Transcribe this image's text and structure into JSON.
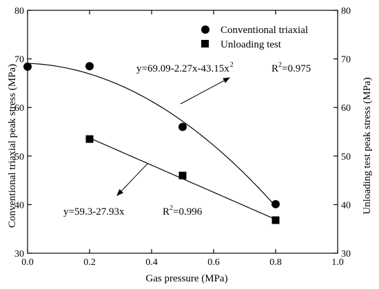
{
  "chart_data": {
    "type": "scatter",
    "title": "",
    "xlabel": "Gas pressure (MPa)",
    "ylabel": "Conventional triaxial peak stress (MPa)",
    "ylabel_right": "Unloading test peak stress (MPa)",
    "xlim": [
      0.0,
      1.0
    ],
    "ylim": [
      30,
      80
    ],
    "x_ticks": [
      "0.0",
      "0.2",
      "0.4",
      "0.6",
      "0.8",
      "1.0"
    ],
    "y_ticks": [
      "30",
      "40",
      "50",
      "60",
      "70",
      "80"
    ],
    "grid": false,
    "legend": "top-right",
    "series": [
      {
        "name": "Conventional triaxial",
        "marker": "circle",
        "x": [
          0.0,
          0.2,
          0.5,
          0.8
        ],
        "y": [
          68.4,
          68.5,
          56.0,
          40.1
        ],
        "fit": {
          "type": "quadratic",
          "a": 69.09,
          "b": -2.27,
          "c": -43.15,
          "x_range": [
            0.0,
            0.8
          ]
        }
      },
      {
        "name": "Unloading test",
        "marker": "square",
        "x": [
          0.2,
          0.5,
          0.8
        ],
        "y": [
          53.5,
          46.0,
          36.8
        ],
        "fit": {
          "type": "linear",
          "a": 59.3,
          "b": -27.93,
          "x_range": [
            0.2,
            0.8
          ]
        }
      }
    ],
    "annotations": [
      {
        "equation": "y=69.09-2.27x-43.15x",
        "superscript": "2",
        "r2_prefix": "R",
        "r2_sup": "2",
        "r2_value": "=0.975"
      },
      {
        "equation": "y=59.3-27.93x",
        "r2_prefix": "R",
        "r2_sup": "2",
        "r2_value": "=0.996"
      }
    ]
  }
}
